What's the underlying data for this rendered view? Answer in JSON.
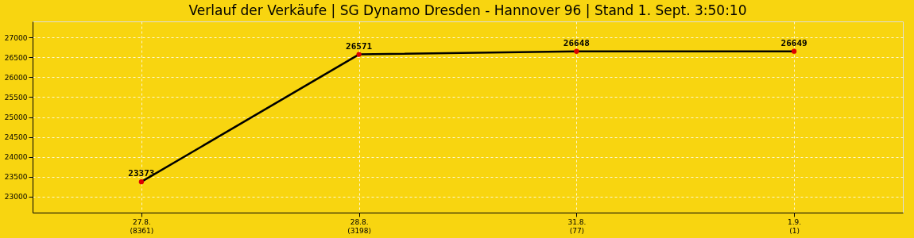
{
  "chart_data": {
    "type": "line",
    "title": "Verlauf der Verkäufe | SG Dynamo Dresden - Hannover 96 | Stand 1. Sept. 3:50:10",
    "categories": [
      "27.8.\n(8361)",
      "28.8.\n(3198)",
      "31.8.\n(77)",
      "1.9.\n(1)"
    ],
    "series": [
      {
        "color": "#000000",
        "values": [
          23373,
          26571,
          26648,
          26649
        ]
      }
    ],
    "marker": "circle",
    "line_style": "solid",
    "ylim": [
      22600,
      27400
    ],
    "yticks": [
      23000,
      23500,
      24000,
      24500,
      25000,
      25500,
      26000,
      26500,
      27000
    ],
    "grid": true,
    "data_labels": true
  }
}
